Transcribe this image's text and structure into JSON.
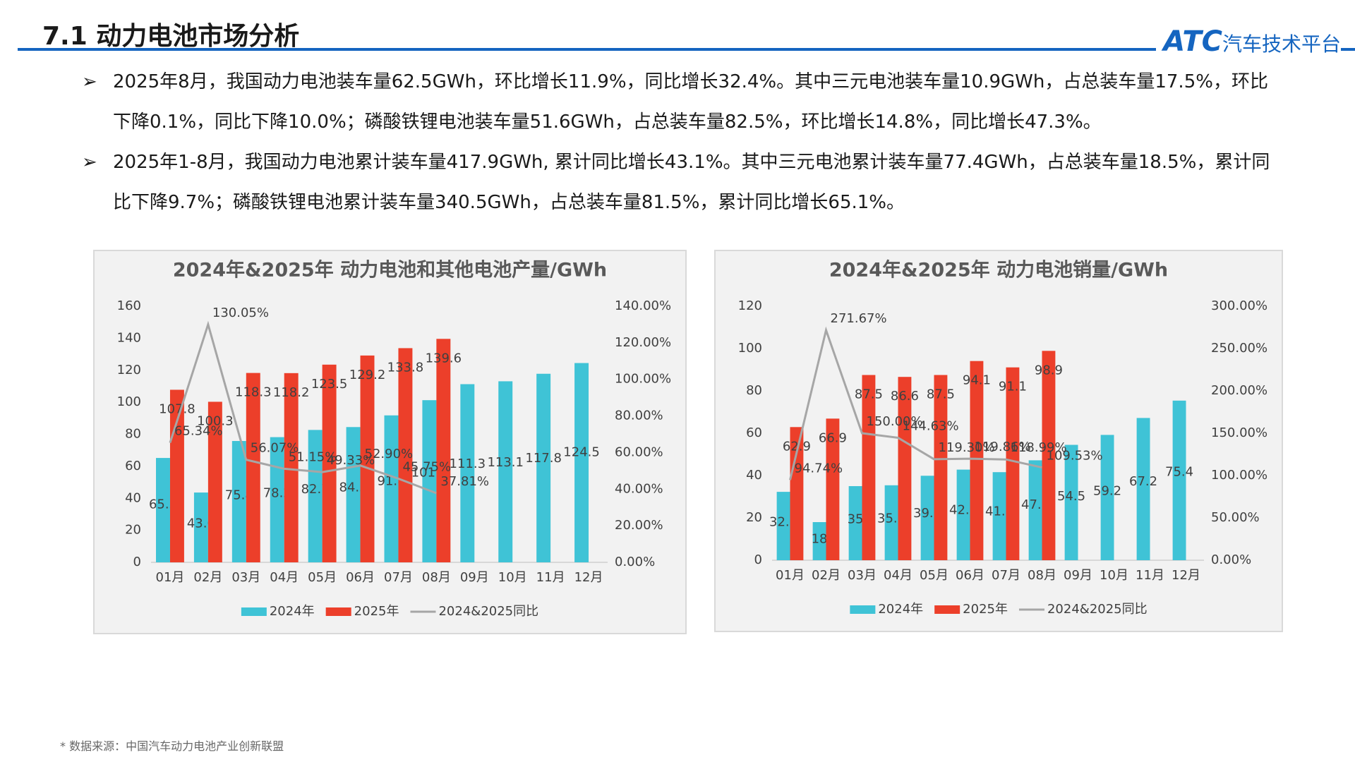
{
  "header": {
    "title": "7.1 动力电池市场分析",
    "logo_mark": "ATC",
    "logo_text": "汽车技术平台"
  },
  "bullets": [
    "2025年8月，我国动力电池装车量62.5GWh，环比增长11.9%，同比增长32.4%。其中三元电池装车量10.9GWh，占总装车量17.5%，环比下降0.1%，同比下降10.0%；磷酸铁锂电池装车量51.6GWh，占总装车量82.5%，环比增长14.8%，同比增长47.3%。",
    "2025年1-8月，我国动力电池累计装车量417.9GWh, 累计同比增长43.1%。其中三元电池累计装车量77.4GWh，占总装车量18.5%，累计同比下降9.7%；磷酸铁锂电池累计装车量340.5GWh，占总装车量81.5%，累计同比增长65.1%。"
  ],
  "chart_data": [
    {
      "type": "bar_line",
      "title": "2024年&2025年 动力电池和其他电池产量/GWh",
      "categories": [
        "01月",
        "02月",
        "03月",
        "04月",
        "05月",
        "06月",
        "07月",
        "08月",
        "09月",
        "10月",
        "11月",
        "12月"
      ],
      "series": [
        {
          "name": "2024年",
          "color": "#3fc3d6",
          "values": [
            65.2,
            43.6,
            75.8,
            78.2,
            82.7,
            84.5,
            91.8,
            101.3,
            111.3,
            113.1,
            117.8,
            124.5
          ]
        },
        {
          "name": "2025年",
          "color": "#ec3f2a",
          "values": [
            107.8,
            100.3,
            118.3,
            118.2,
            123.5,
            129.2,
            133.8,
            139.6,
            null,
            null,
            null,
            null
          ]
        },
        {
          "name": "2024&2025同比",
          "type": "line",
          "axis": "y2",
          "color": "#a6a6a6",
          "values": [
            65.34,
            130.05,
            56.07,
            51.15,
            49.33,
            52.9,
            45.75,
            37.81,
            null,
            null,
            null,
            null
          ],
          "value_labels": [
            "65.34%",
            "130.05%",
            "56.07%",
            "51.15%",
            "49.33%",
            "52.90%",
            "45.75%",
            "37.81%",
            null,
            null,
            null,
            null
          ]
        }
      ],
      "ylim": [
        0,
        160
      ],
      "yticks": [
        0,
        20,
        40,
        60,
        80,
        100,
        120,
        140,
        160
      ],
      "y2lim": [
        0,
        140
      ],
      "y2ticks": [
        {
          "value": 0,
          "label": "0.00%"
        },
        {
          "value": 20,
          "label": "20.00%"
        },
        {
          "value": 40,
          "label": "40.00%"
        },
        {
          "value": 60,
          "label": "60.00%"
        },
        {
          "value": 80,
          "label": "80.00%"
        },
        {
          "value": 100,
          "label": "100.00%"
        },
        {
          "value": 120,
          "label": "120.00%"
        },
        {
          "value": 140,
          "label": "140.00%"
        }
      ],
      "grid": false,
      "legend": "bottom"
    },
    {
      "type": "bar_line",
      "title": "2024年&2025年 动力电池销量/GWh",
      "categories": [
        "01月",
        "02月",
        "03月",
        "04月",
        "05月",
        "06月",
        "07月",
        "08月",
        "09月",
        "10月",
        "11月",
        "12月"
      ],
      "series": [
        {
          "name": "2024年",
          "color": "#3fc3d6",
          "values": [
            32.3,
            18,
            35,
            35.4,
            39.9,
            42.8,
            41.6,
            47.2,
            54.5,
            59.2,
            67.2,
            75.4
          ]
        },
        {
          "name": "2025年",
          "color": "#ec3f2a",
          "values": [
            62.9,
            66.9,
            87.5,
            86.6,
            87.5,
            94.1,
            91.1,
            98.9,
            null,
            null,
            null,
            null
          ]
        },
        {
          "name": "2024&2025同比",
          "type": "line",
          "axis": "y2",
          "color": "#a6a6a6",
          "values": [
            94.74,
            271.67,
            150.0,
            144.63,
            119.3,
            119.86,
            118.99,
            109.53,
            null,
            null,
            null,
            null
          ],
          "value_labels": [
            "94.74%",
            "271.67%",
            "150.00%",
            "144.63%",
            "119.30%",
            "119.86%",
            "118.99%",
            "109.53%",
            null,
            null,
            null,
            null
          ]
        }
      ],
      "ylim": [
        0,
        120
      ],
      "yticks": [
        0,
        20,
        40,
        60,
        80,
        100,
        120
      ],
      "y2lim": [
        0,
        300
      ],
      "y2ticks": [
        {
          "value": 0,
          "label": "0.00%"
        },
        {
          "value": 50,
          "label": "50.00%"
        },
        {
          "value": 100,
          "label": "100.00%"
        },
        {
          "value": 150,
          "label": "150.00%"
        },
        {
          "value": 200,
          "label": "200.00%"
        },
        {
          "value": 250,
          "label": "250.00%"
        },
        {
          "value": 300,
          "label": "300.00%"
        }
      ],
      "grid": false,
      "legend": "bottom"
    }
  ],
  "footnote": "* 数据来源：中国汽车动力电池产业创新联盟"
}
